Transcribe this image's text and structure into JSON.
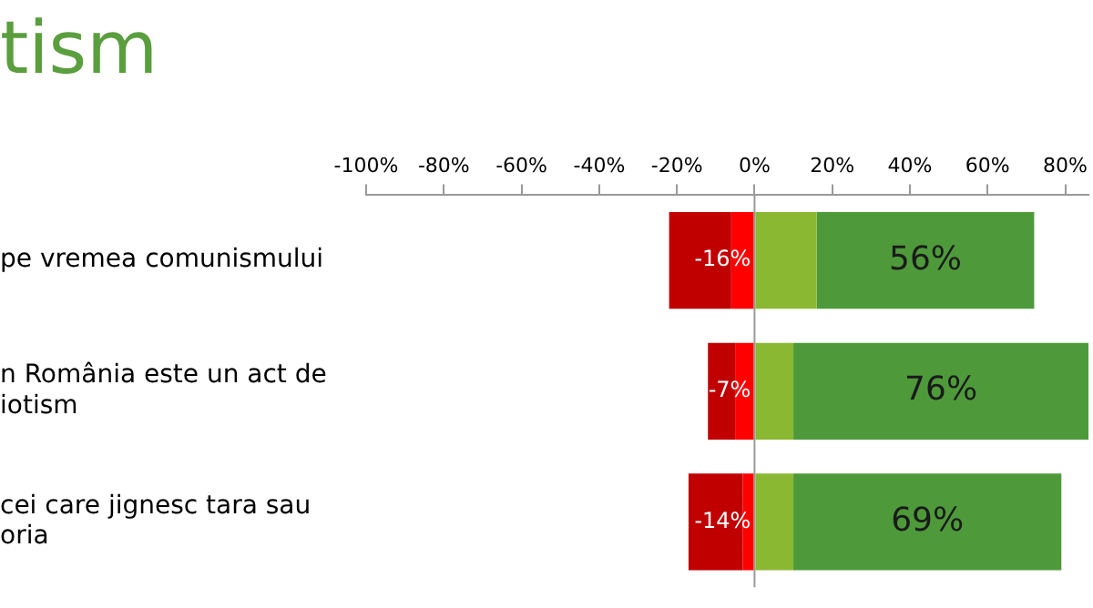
{
  "chart_data": {
    "type": "bar",
    "title": "tism",
    "orientation": "horizontal",
    "stacked": true,
    "categories": [
      "pe vremea comunismului",
      "n România este un act de\niotism",
      "cei care jignesc tara sau\noria"
    ],
    "series": [
      {
        "color": "#ff0000",
        "values": [
          -6,
          -5,
          -3
        ]
      },
      {
        "color": "#c00000",
        "values": [
          -16,
          -7,
          -14
        ],
        "value_labels": [
          "-16%",
          "-7%",
          "-14%"
        ]
      },
      {
        "color": "#8ab832",
        "values": [
          16,
          10,
          10
        ]
      },
      {
        "color": "#4e9a3a",
        "values": [
          56,
          76,
          69
        ],
        "value_labels": [
          "56%",
          "76%",
          "69%"
        ]
      }
    ],
    "xlim": [
      -100,
      86
    ],
    "xticks": [
      {
        "value": -100,
        "label": "-100%"
      },
      {
        "value": -80,
        "label": "-80%"
      },
      {
        "value": -60,
        "label": "-60%"
      },
      {
        "value": -40,
        "label": "-40%"
      },
      {
        "value": -20,
        "label": "-20%"
      },
      {
        "value": 0,
        "label": "0%"
      },
      {
        "value": 20,
        "label": "20%"
      },
      {
        "value": 40,
        "label": "40%"
      },
      {
        "value": 60,
        "label": "60%"
      },
      {
        "value": 80,
        "label": "80%"
      }
    ],
    "ref_lines": [
      {
        "axis": "x",
        "value": 0,
        "color": "#999999"
      }
    ],
    "grid": false,
    "legend": false
  }
}
